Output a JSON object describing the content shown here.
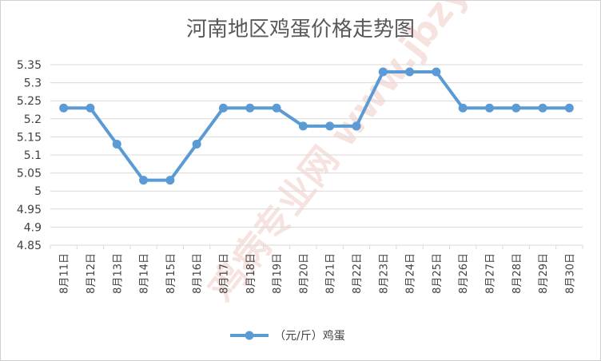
{
  "chart_data": {
    "type": "line",
    "title": "河南地区鸡蛋价格走势图",
    "categories": [
      "8月11日",
      "8月12日",
      "8月13日",
      "8月14日",
      "8月15日",
      "8月16日",
      "8月17日",
      "8月18日",
      "8月19日",
      "8月20日",
      "8月21日",
      "8月22日",
      "8月23日",
      "8月24日",
      "8月25日",
      "8月26日",
      "8月27日",
      "8月28日",
      "8月29日",
      "8月30日"
    ],
    "series": [
      {
        "name": "（元/斤）鸡蛋",
        "color": "#5b9bd5",
        "values": [
          5.23,
          5.23,
          5.13,
          5.03,
          5.03,
          5.13,
          5.23,
          5.23,
          5.23,
          5.18,
          5.18,
          5.18,
          5.33,
          5.33,
          5.33,
          5.23,
          5.23,
          5.23,
          5.23,
          5.23
        ]
      }
    ],
    "yticks": [
      "4.85",
      "4.9",
      "4.95",
      "5",
      "5.05",
      "5.1",
      "5.15",
      "5.2",
      "5.25",
      "5.3",
      "5.35"
    ],
    "ylim": [
      4.85,
      5.35
    ],
    "grid": true,
    "legend": "bottom",
    "watermark": "鸡病专业网 www.jbzyw.com 张 老 师"
  }
}
